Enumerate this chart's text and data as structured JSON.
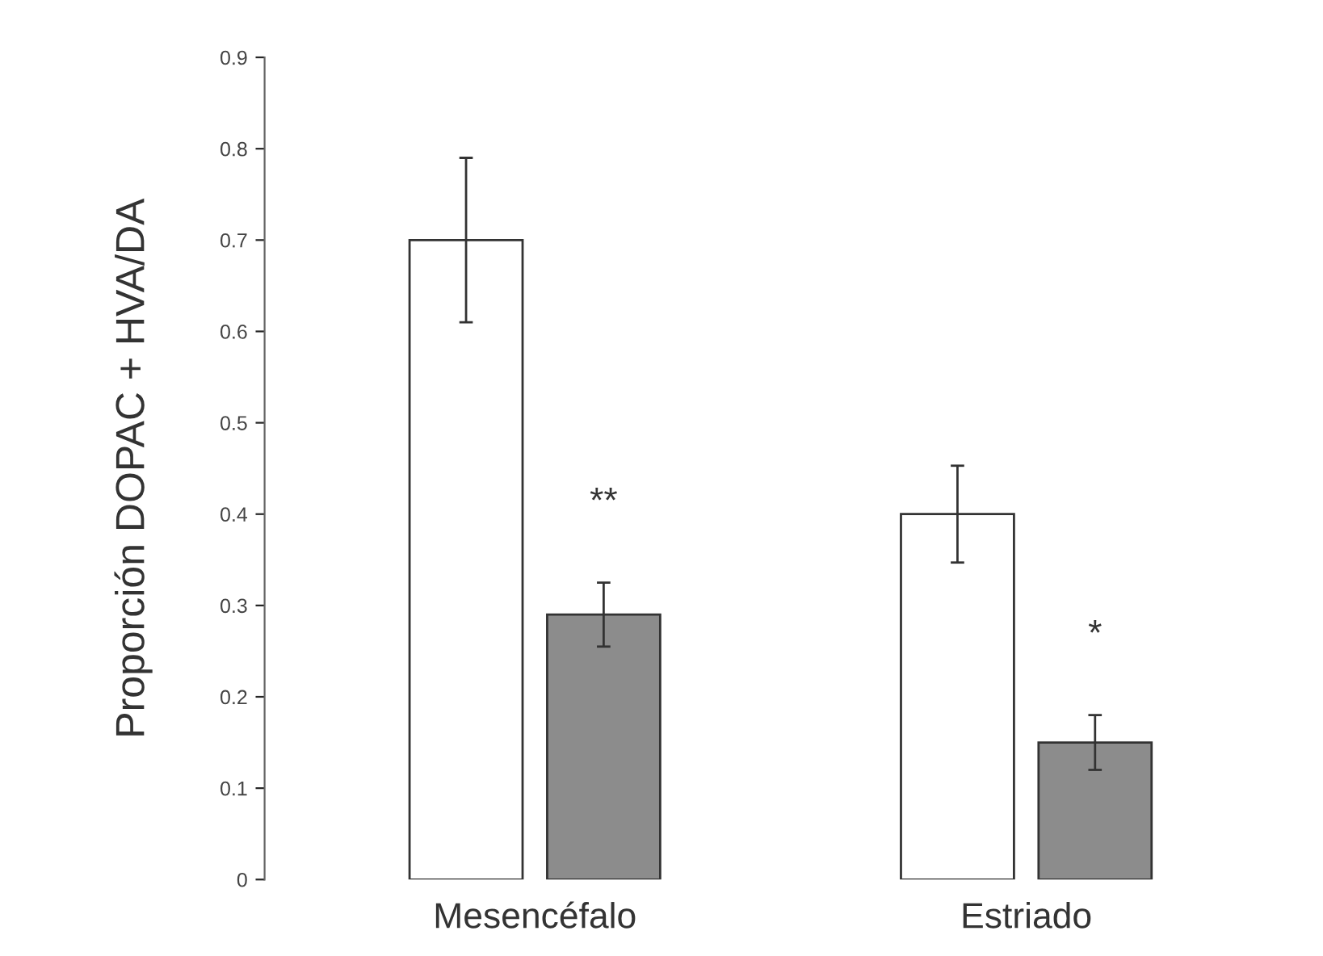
{
  "chart_data": {
    "type": "bar",
    "ylabel": "Proporción DOPAC + HVA/DA",
    "categories": [
      "Mesencéfalo",
      "Estriado"
    ],
    "series": [
      {
        "color": "#ffffff",
        "values": [
          0.7,
          0.4
        ],
        "errors": [
          0.09,
          0.053
        ]
      },
      {
        "color": "#8c8c8c",
        "values": [
          0.29,
          0.15
        ],
        "errors": [
          0.035,
          0.03
        ]
      }
    ],
    "ylim": [
      0,
      0.9
    ],
    "yticks": [
      0,
      0.1,
      0.2,
      0.3,
      0.4,
      0.5,
      0.6,
      0.7,
      0.8,
      0.9
    ],
    "annotations": [
      "**",
      "*"
    ],
    "grid": false,
    "legend": false
  }
}
